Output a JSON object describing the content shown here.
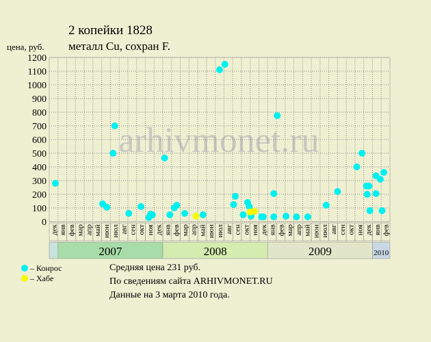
{
  "chart_data": {
    "type": "scatter",
    "title": [
      "2 копейки 1828",
      "металл Cu, сохран F."
    ],
    "y_label": "цена, руб.",
    "watermark": "arhivmonet.ru",
    "categories": [
      "дек",
      "янв",
      "фев",
      "мар",
      "апр",
      "май",
      "июн",
      "июл",
      "авг",
      "сен",
      "окт",
      "ноя",
      "дек",
      "янв",
      "фев",
      "мар",
      "апр",
      "май",
      "июн",
      "июл",
      "авг",
      "сен",
      "окт",
      "ноя",
      "дек",
      "янв",
      "фев",
      "мар",
      "апр",
      "май",
      "июн",
      "июл",
      "авг",
      "сен",
      "окт",
      "ноя",
      "дек",
      "янв",
      "фев"
    ],
    "years": [
      {
        "label": null,
        "color": "#c8e4dc"
      },
      {
        "label": "2007",
        "color": "#a8dca8"
      },
      {
        "label": "2008",
        "color": "#d4ecb0"
      },
      {
        "label": "2009",
        "color": "#e2e6c8"
      },
      {
        "label": "2010",
        "color": "#c8d8e4"
      }
    ],
    "xlim": [
      0,
      39
    ],
    "ylim": [
      0,
      1200
    ],
    "yticks": [
      0,
      100,
      200,
      300,
      400,
      500,
      600,
      700,
      800,
      900,
      1000,
      1100,
      1200
    ],
    "grid": true,
    "series": [
      {
        "name": "– Конрос",
        "color": "#00f0f0",
        "x": [
          0.7,
          6.1,
          6.6,
          7.3,
          7.5,
          9.1,
          10.5,
          11.4,
          11.6,
          11.8,
          13.2,
          13.8,
          14.3,
          14.6,
          15.5,
          17.6,
          19.5,
          20.1,
          21.1,
          21.3,
          22.2,
          22.7,
          22.9,
          23.1,
          24.3,
          24.5,
          25.7,
          25.7,
          26.1,
          27.1,
          28.3,
          29.6,
          31.7,
          33.0,
          35.2,
          35.8,
          36.3,
          36.4,
          36.6,
          36.7,
          37.4,
          37.4,
          37.9,
          38.1,
          38.3
        ],
        "values": [
          280,
          130,
          105,
          500,
          700,
          60,
          110,
          30,
          55,
          50,
          465,
          50,
          100,
          120,
          60,
          50,
          1110,
          1150,
          125,
          185,
          50,
          140,
          110,
          40,
          35,
          35,
          205,
          35,
          775,
          40,
          35,
          35,
          120,
          220,
          400,
          500,
          260,
          200,
          260,
          80,
          335,
          205,
          310,
          80,
          360
        ]
      },
      {
        "name": "– Хабе",
        "color": "#f8f800",
        "x": [
          16.8,
          23.0,
          23.5
        ],
        "values": [
          40,
          70,
          75
        ]
      }
    ],
    "notes": [
      "Средняя цена 231 руб.",
      "По  сведениям сайта ARHIVMONET.RU",
      "Данные на 3 марта 2010 года."
    ]
  }
}
